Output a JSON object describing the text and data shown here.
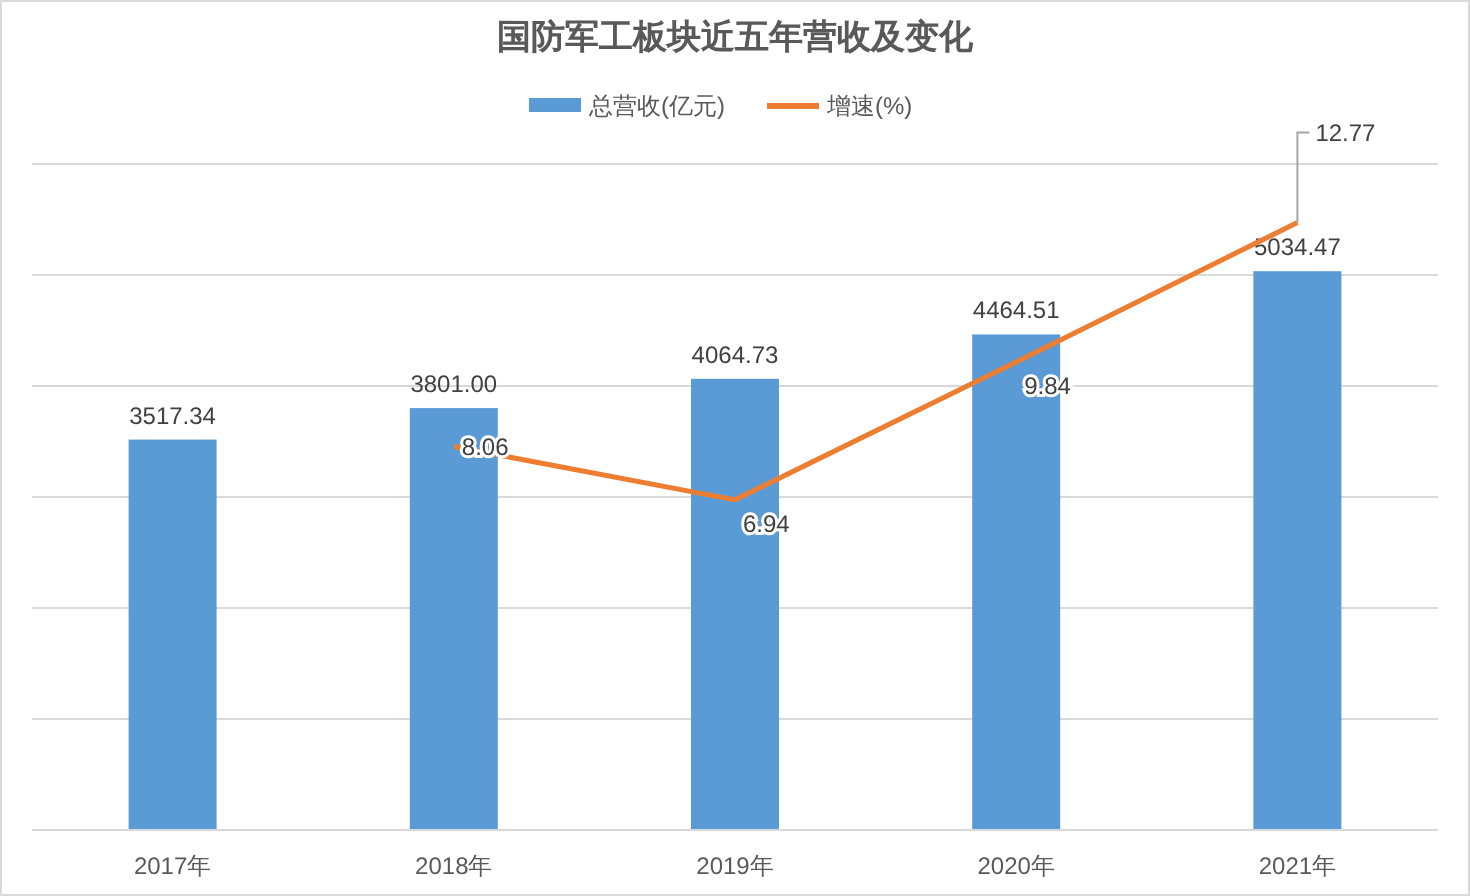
{
  "chart_data": {
    "type": "bar",
    "title": "国防军工板块近五年营收及变化",
    "categories": [
      "2017年",
      "2018年",
      "2019年",
      "2020年",
      "2021年"
    ],
    "series": [
      {
        "name": "总营收(亿元)",
        "color": "#5b9bd5",
        "values": [
          3517.34,
          3801.0,
          4064.73,
          4464.51,
          5034.47
        ],
        "value_labels": [
          "3517.34",
          "3801.00",
          "4064.73",
          "4464.51",
          "5034.47"
        ]
      },
      {
        "name": "增速(%)",
        "type": "line",
        "axis": "y2",
        "color": "#ed7d31",
        "values": [
          null,
          8.06,
          6.94,
          9.84,
          12.77
        ],
        "value_labels": [
          null,
          "8.06",
          "6.94",
          "9.84",
          "12.77"
        ]
      }
    ],
    "ylim": [
      0,
      6000
    ],
    "yticks": [
      {
        "value": 0,
        "label": null
      },
      {
        "value": 1000,
        "label": null
      },
      {
        "value": 2000,
        "label": null
      },
      {
        "value": 3000,
        "label": null
      },
      {
        "value": 4000,
        "label": null
      },
      {
        "value": 5000,
        "label": null
      },
      {
        "value": 6000,
        "label": null
      }
    ],
    "y2lim": [
      0,
      14
    ],
    "grid": "y",
    "legend": "top",
    "tick_labels": "x",
    "marker": "none",
    "line_style": "solid"
  }
}
